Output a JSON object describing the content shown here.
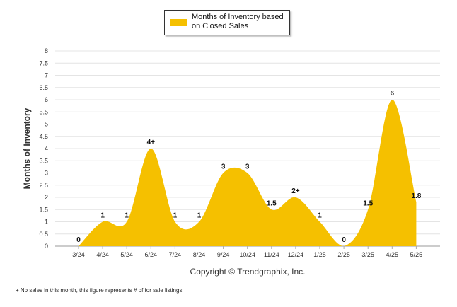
{
  "legend": {
    "label": "Months of Inventory based on Closed Sales",
    "color": "#f5c000"
  },
  "copyright": "Copyright © Trendgraphix, Inc.",
  "footnote": "+ No sales in this month, this figure represents # of for sale listings",
  "chart_data": {
    "type": "area",
    "categories": [
      "3/24",
      "4/24",
      "5/24",
      "6/24",
      "7/24",
      "8/24",
      "9/24",
      "10/24",
      "11/24",
      "12/24",
      "1/25",
      "2/25",
      "3/25",
      "4/25",
      "5/25"
    ],
    "series": [
      {
        "name": "Months of Inventory based on Closed Sales",
        "values": [
          0,
          1,
          1,
          4,
          1,
          1,
          3,
          3,
          1.5,
          2,
          1,
          0,
          1.5,
          6,
          1.8
        ]
      }
    ],
    "data_labels": [
      "0",
      "1",
      "1",
      "4+",
      "1",
      "1",
      "3",
      "3",
      "1.5",
      "2+",
      "1",
      "0",
      "1.5",
      "6",
      "1.8"
    ],
    "ylabel": "Months of Inventory",
    "xlabel": "",
    "ylim": [
      0,
      8
    ],
    "yticks": [
      "0",
      "0.5",
      "1",
      "1.5",
      "2",
      "2.5",
      "3",
      "3.5",
      "4",
      "4.5",
      "5",
      "5.5",
      "6",
      "6.5",
      "7",
      "7.5",
      "8"
    ],
    "grid": true,
    "legend_position": "top-center",
    "fill_color": "#f5c000"
  }
}
